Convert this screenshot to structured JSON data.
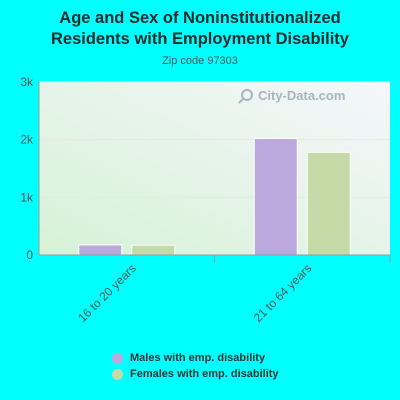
{
  "header": {
    "title_line1": "Age and Sex of Noninstitutionalized",
    "title_line2": "Residents with Employment Disability",
    "subtitle": "Zip code 97303"
  },
  "watermark": {
    "text": "City-Data.com",
    "icon": "magnifier-icon"
  },
  "chart_data": {
    "type": "bar",
    "title": "Age and Sex of Noninstitutionalized Residents with Employment Disability",
    "subtitle": "Zip code 97303",
    "categories": [
      "16 to 20 years",
      "21 to 64 years"
    ],
    "series": [
      {
        "name": "Males with emp. disability",
        "values": [
          175,
          2020
        ],
        "color": "#bba8dc"
      },
      {
        "name": "Females with emp. disability",
        "values": [
          170,
          1780
        ],
        "color": "#c5daa6"
      }
    ],
    "ylim": [
      0,
      3000
    ],
    "yticks": [
      {
        "value": 0,
        "label": "0"
      },
      {
        "value": 1000,
        "label": "1k"
      },
      {
        "value": 2000,
        "label": "2k"
      },
      {
        "value": 3000,
        "label": "3k"
      }
    ],
    "xlabel": "",
    "ylabel": "",
    "grid": true,
    "legend_position": "bottom"
  }
}
